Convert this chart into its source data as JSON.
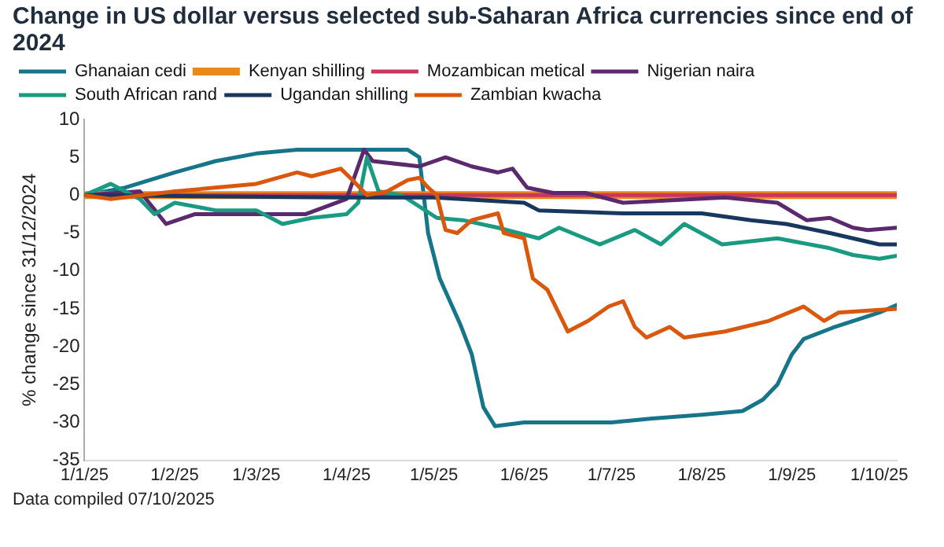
{
  "chart_data": {
    "type": "line",
    "title": "Change in US dollar versus selected sub-Saharan Africa currencies since end of 2024",
    "ylabel": "% change since 31/12/2024",
    "annotations": [
      "Data compiled 07/10/2025"
    ],
    "xlim": [
      "2025-01-01",
      "2025-10-07"
    ],
    "xticks": [
      {
        "value": "2025-01-01",
        "label": "1/1/25"
      },
      {
        "value": "2025-02-01",
        "label": "1/2/25"
      },
      {
        "value": "2025-03-01",
        "label": "1/3/25"
      },
      {
        "value": "2025-04-01",
        "label": "1/4/25"
      },
      {
        "value": "2025-05-01",
        "label": "1/5/25"
      },
      {
        "value": "2025-06-01",
        "label": "1/6/25"
      },
      {
        "value": "2025-07-01",
        "label": "1/7/25"
      },
      {
        "value": "2025-08-01",
        "label": "1/8/25"
      },
      {
        "value": "2025-09-01",
        "label": "1/9/25"
      },
      {
        "value": "2025-10-01",
        "label": "1/10/25"
      }
    ],
    "ylim": [
      -35,
      10
    ],
    "yticks": [
      -35,
      -30,
      -25,
      -20,
      -15,
      -10,
      -5,
      0,
      5,
      10
    ],
    "grid": false,
    "legend": "top",
    "marker": "none",
    "line_style": "solid",
    "series": [
      {
        "name": "Ghanaian cedi",
        "color": "#17758a",
        "x": [
          "2025-01-01",
          "2025-01-15",
          "2025-02-01",
          "2025-02-15",
          "2025-03-01",
          "2025-03-15",
          "2025-04-01",
          "2025-04-15",
          "2025-04-22",
          "2025-04-26",
          "2025-04-29",
          "2025-05-03",
          "2025-05-10",
          "2025-05-14",
          "2025-05-18",
          "2025-05-22",
          "2025-06-01",
          "2025-07-01",
          "2025-07-15",
          "2025-08-01",
          "2025-08-15",
          "2025-08-22",
          "2025-08-27",
          "2025-09-01",
          "2025-09-05",
          "2025-09-15",
          "2025-10-01",
          "2025-10-07"
        ],
        "values": [
          0,
          1,
          3,
          4.5,
          5.5,
          6,
          6,
          6,
          6,
          5,
          -5,
          -11,
          -17,
          -21,
          -28,
          -30.5,
          -30,
          -30,
          -29.5,
          -29,
          -28.5,
          -27,
          -25,
          -21,
          -19,
          -17.5,
          -15.5,
          -14.5
        ]
      },
      {
        "name": "Kenyan shilling",
        "color": "#e8891a",
        "x": [
          "2025-01-01",
          "2025-04-01",
          "2025-07-01",
          "2025-10-07"
        ],
        "values": [
          0,
          0,
          0,
          0
        ]
      },
      {
        "name": "Mozambican metical",
        "color": "#c9365e",
        "x": [
          "2025-01-01",
          "2025-04-01",
          "2025-07-01",
          "2025-10-07"
        ],
        "values": [
          0,
          0,
          0,
          0
        ]
      },
      {
        "name": "Nigerian naira",
        "color": "#5b2a6e",
        "x": [
          "2025-01-01",
          "2025-01-20",
          "2025-01-29",
          "2025-02-08",
          "2025-03-15",
          "2025-03-18",
          "2025-04-01",
          "2025-04-07",
          "2025-04-10",
          "2025-04-26",
          "2025-05-05",
          "2025-05-14",
          "2025-05-23",
          "2025-05-28",
          "2025-06-02",
          "2025-06-11",
          "2025-06-22",
          "2025-07-05",
          "2025-08-09",
          "2025-08-27",
          "2025-09-06",
          "2025-09-14",
          "2025-09-22",
          "2025-09-27",
          "2025-10-07"
        ],
        "values": [
          0,
          0.5,
          -3.8,
          -2.5,
          -2.5,
          -2.5,
          -0.5,
          6,
          4.5,
          3.8,
          5,
          3.8,
          3,
          3.5,
          1,
          0.3,
          0.3,
          -1,
          -0.3,
          -1,
          -3.3,
          -3,
          -4.3,
          -4.6,
          -4.3
        ]
      },
      {
        "name": "South African rand",
        "color": "#1a9a80",
        "x": [
          "2025-01-01",
          "2025-01-10",
          "2025-01-20",
          "2025-01-25",
          "2025-02-01",
          "2025-02-15",
          "2025-03-01",
          "2025-03-10",
          "2025-03-20",
          "2025-04-01",
          "2025-04-05",
          "2025-04-08",
          "2025-04-12",
          "2025-04-20",
          "2025-05-02",
          "2025-05-11",
          "2025-05-23",
          "2025-06-06",
          "2025-06-13",
          "2025-06-27",
          "2025-07-09",
          "2025-07-18",
          "2025-07-26",
          "2025-08-08",
          "2025-08-27",
          "2025-09-14",
          "2025-09-22",
          "2025-10-01",
          "2025-10-07"
        ],
        "values": [
          0,
          1.5,
          -0.5,
          -2.5,
          -1,
          -2,
          -2,
          -3.8,
          -3,
          -2.5,
          -1,
          5,
          0.5,
          0,
          -3,
          -3.3,
          -4.3,
          -5.7,
          -4.3,
          -6.5,
          -4.6,
          -6.5,
          -3.8,
          -6.5,
          -5.7,
          -7,
          -7.9,
          -8.4,
          -8
        ]
      },
      {
        "name": "Ugandan shilling",
        "color": "#17375e",
        "x": [
          "2025-01-01",
          "2025-04-01",
          "2025-05-01",
          "2025-06-01",
          "2025-06-06",
          "2025-07-05",
          "2025-08-01",
          "2025-08-18",
          "2025-08-30",
          "2025-09-14",
          "2025-10-01",
          "2025-10-07"
        ],
        "values": [
          0,
          -0.3,
          -0.3,
          -1,
          -2,
          -2.4,
          -2.4,
          -3.3,
          -3.8,
          -5,
          -6.5,
          -6.5
        ]
      },
      {
        "name": "Zambian kwacha",
        "color": "#d9580d",
        "x": [
          "2025-01-01",
          "2025-01-10",
          "2025-02-01",
          "2025-03-01",
          "2025-03-15",
          "2025-03-20",
          "2025-03-30",
          "2025-04-03",
          "2025-04-08",
          "2025-04-15",
          "2025-04-22",
          "2025-04-26",
          "2025-04-29",
          "2025-05-02",
          "2025-05-05",
          "2025-05-09",
          "2025-05-14",
          "2025-05-23",
          "2025-05-25",
          "2025-06-01",
          "2025-06-04",
          "2025-06-09",
          "2025-06-16",
          "2025-06-23",
          "2025-06-30",
          "2025-07-05",
          "2025-07-09",
          "2025-07-13",
          "2025-07-21",
          "2025-07-26",
          "2025-08-09",
          "2025-08-24",
          "2025-09-05",
          "2025-09-12",
          "2025-09-17",
          "2025-09-29",
          "2025-10-07"
        ],
        "values": [
          0,
          -0.5,
          0.5,
          1.5,
          3,
          2.5,
          3.5,
          2,
          0,
          0.5,
          2,
          2.3,
          1,
          0,
          -4.6,
          -5,
          -3.3,
          -2.4,
          -5,
          -5.7,
          -11,
          -12.5,
          -18,
          -16.6,
          -14.7,
          -14,
          -17.4,
          -18.8,
          -17.4,
          -18.8,
          -18,
          -16.6,
          -14.7,
          -16.6,
          -15.5,
          -15.2,
          -15
        ]
      }
    ]
  }
}
